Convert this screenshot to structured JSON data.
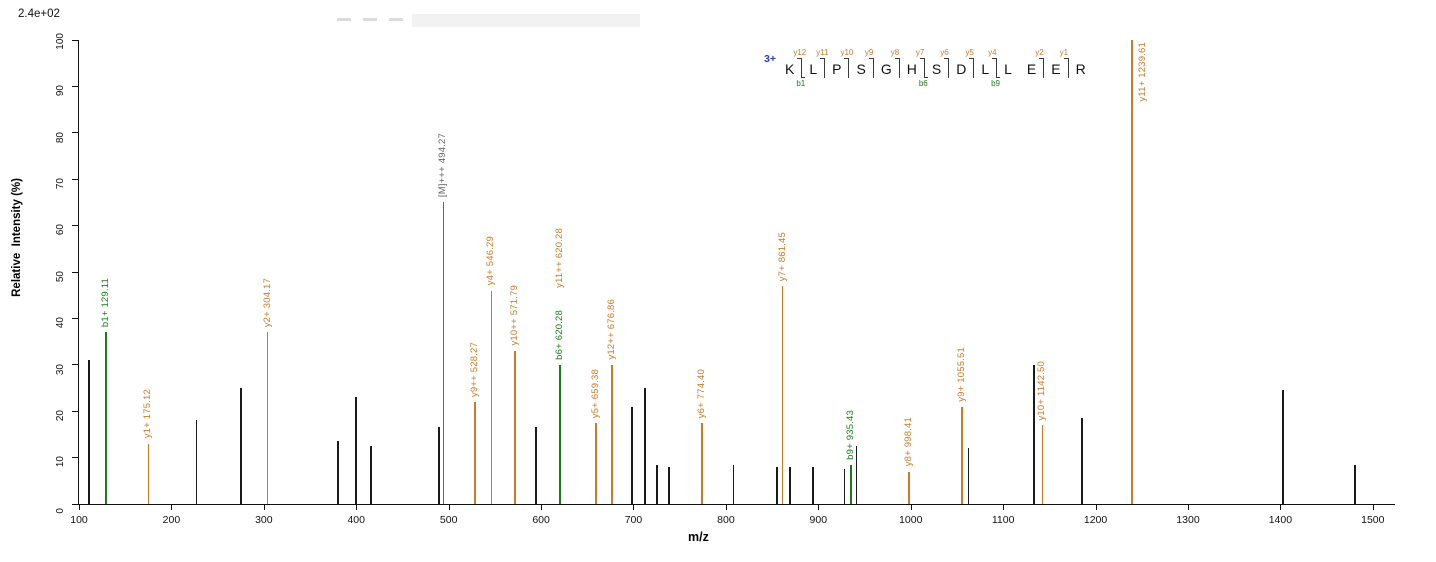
{
  "chart_data": {
    "type": "bar",
    "variant": "ms2-peptide-fragmentation-spectrum",
    "xlabel": "m/z",
    "ylabel": "Relative  Intensity (%)",
    "base_peak_intensity": "2.4e+02",
    "xlim": [
      100,
      1524
    ],
    "ylim": [
      0,
      100
    ],
    "x_ticks": [
      100,
      200,
      300,
      400,
      500,
      600,
      700,
      800,
      900,
      1000,
      1100,
      1200,
      1300,
      1400,
      1500
    ],
    "y_ticks": [
      0,
      10,
      20,
      30,
      40,
      50,
      60,
      70,
      80,
      90,
      100
    ],
    "grid": false,
    "colors": {
      "y": "#cc7a29",
      "b": "#1c7c1c",
      "precursor": "#666666",
      "unassigned": "#1a1a1a",
      "charge": "#2b3db8",
      "axis": "#111111"
    },
    "precursor_charge": "3+",
    "peptide": {
      "sequence": "KLPSGHSDLLEER",
      "residues": [
        "K",
        "L",
        "P",
        "S",
        "G",
        "H",
        "S",
        "D",
        "L",
        "L",
        "E",
        "E",
        "R"
      ],
      "boundaries": [
        {
          "y": "y12",
          "b": "b1"
        },
        {
          "y": "y11"
        },
        {
          "y": "y10"
        },
        {
          "y": "y9"
        },
        {
          "y": "y8"
        },
        {
          "y": "y7",
          "b": "b6"
        },
        {
          "y": "y6"
        },
        {
          "y": "y5"
        },
        {
          "y": "y4",
          "b": "b9"
        },
        {},
        {
          "y": "y2"
        },
        {
          "y": "y1"
        }
      ]
    },
    "peaks": [
      {
        "mz": 111.1,
        "intensity": 31,
        "type": "unassigned"
      },
      {
        "mz": 129.11,
        "intensity": 37,
        "type": "b",
        "label": "b1+ 129.11"
      },
      {
        "mz": 175.12,
        "intensity": 13,
        "type": "y",
        "label": "y1+ 175.12"
      },
      {
        "mz": 227.1,
        "intensity": 18,
        "type": "unassigned"
      },
      {
        "mz": 275.1,
        "intensity": 25,
        "type": "unassigned"
      },
      {
        "mz": 304.17,
        "intensity": 37,
        "type": "y",
        "label": "y2+ 304.17"
      },
      {
        "mz": 380.2,
        "intensity": 13.5,
        "type": "unassigned"
      },
      {
        "mz": 399.8,
        "intensity": 23,
        "type": "unassigned"
      },
      {
        "mz": 416.2,
        "intensity": 12.5,
        "type": "unassigned"
      },
      {
        "mz": 489.3,
        "intensity": 16.5,
        "type": "unassigned"
      },
      {
        "mz": 494.27,
        "intensity": 65,
        "type": "precursor",
        "label": "[M]+++ 494.27"
      },
      {
        "mz": 528.27,
        "intensity": 22,
        "type": "y",
        "label": "y9++ 528.27"
      },
      {
        "mz": 546.29,
        "intensity": 46,
        "type": "y",
        "label": "y4+ 546.29"
      },
      {
        "mz": 571.79,
        "intensity": 33,
        "type": "y",
        "label": "y10++ 571.79"
      },
      {
        "mz": 594.3,
        "intensity": 16.5,
        "type": "unassigned"
      },
      {
        "mz": 620.28,
        "intensity": 30,
        "type": "y",
        "label": "y11++ 620.28",
        "label_gap": 72
      },
      {
        "mz": 620.28,
        "intensity": 30,
        "type": "b",
        "label": "b6+ 620.28"
      },
      {
        "mz": 659.38,
        "intensity": 17.5,
        "type": "y",
        "label": "y5+ 659.38"
      },
      {
        "mz": 676.86,
        "intensity": 30,
        "type": "y",
        "label": "y12++ 676.86"
      },
      {
        "mz": 698.4,
        "intensity": 21,
        "type": "unassigned"
      },
      {
        "mz": 712.4,
        "intensity": 25,
        "type": "unassigned"
      },
      {
        "mz": 725.4,
        "intensity": 8.5,
        "type": "unassigned"
      },
      {
        "mz": 738.4,
        "intensity": 8,
        "type": "unassigned"
      },
      {
        "mz": 774.4,
        "intensity": 17.5,
        "type": "y",
        "label": "y6+ 774.40"
      },
      {
        "mz": 808.4,
        "intensity": 8.5,
        "type": "unassigned"
      },
      {
        "mz": 855.4,
        "intensity": 8,
        "type": "unassigned"
      },
      {
        "mz": 861.45,
        "intensity": 47,
        "type": "y",
        "label": "y7+ 861.45"
      },
      {
        "mz": 869.4,
        "intensity": 8,
        "type": "unassigned"
      },
      {
        "mz": 894.5,
        "intensity": 8,
        "type": "unassigned"
      },
      {
        "mz": 928.5,
        "intensity": 7.5,
        "type": "unassigned"
      },
      {
        "mz": 935.43,
        "intensity": 8.5,
        "type": "b",
        "label": "b9+ 935.43"
      },
      {
        "mz": 941.5,
        "intensity": 12.5,
        "type": "unassigned"
      },
      {
        "mz": 998.41,
        "intensity": 7,
        "type": "y",
        "label": "y8+ 998.41"
      },
      {
        "mz": 1055.51,
        "intensity": 21,
        "type": "y",
        "label": "y9+ 1055.51"
      },
      {
        "mz": 1062.5,
        "intensity": 12,
        "type": "unassigned"
      },
      {
        "mz": 1133.5,
        "intensity": 30,
        "type": "unassigned"
      },
      {
        "mz": 1142.5,
        "intensity": 17,
        "type": "y",
        "label": "y10+ 1142.50"
      },
      {
        "mz": 1185.6,
        "intensity": 18.5,
        "type": "unassigned"
      },
      {
        "mz": 1239.61,
        "intensity": 100,
        "type": "y",
        "label": "y11+ 1239.61",
        "label_at_top": true
      },
      {
        "mz": 1402.7,
        "intensity": 24.5,
        "type": "unassigned"
      },
      {
        "mz": 1480.8,
        "intensity": 8.5,
        "type": "unassigned"
      }
    ]
  }
}
